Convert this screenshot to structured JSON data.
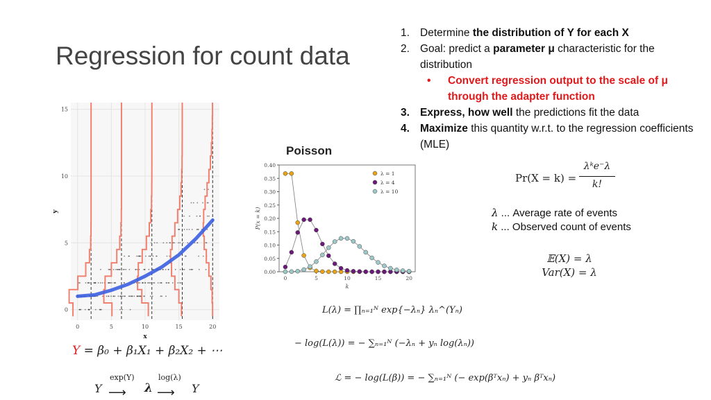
{
  "slide": {
    "title": "Regression for count data",
    "list": {
      "item1": {
        "num": "1.",
        "text": "Determine ",
        "bold": "the distribution of Y for each X"
      },
      "item2": {
        "num": "2.",
        "text": "Goal: predict a ",
        "bold": "parameter μ",
        "rest": " characteristic for the distribution"
      },
      "item2_sub": {
        "bullet": "•",
        "text": "Convert regression output to the scale of μ through the adapter function"
      },
      "item3": {
        "num": "3.",
        "bold": "Express, how well",
        "rest": " the predictions fit the data"
      },
      "item4": {
        "num": "4.",
        "bold": "Maximize",
        "rest": " this quantity w.r.t. to the regression coefficients (MLE)"
      }
    },
    "poisson_title": "Poisson",
    "pmf": {
      "lhs": "Pr(X = k) =",
      "numerator": "λᵏe⁻λ",
      "denominator": "k!"
    },
    "lambda_def": {
      "sym": "λ",
      "text": " ... Average rate of events"
    },
    "k_def": {
      "sym": "k",
      "text": " ... Observed count of events"
    },
    "moments": {
      "mean": "𝔼(X) = λ",
      "var": "Var(X) = λ"
    },
    "regression_eq": {
      "y": "Y",
      "rest": " = β₀ + β₁X₁ + β₂X₂ + ⋯"
    },
    "link": {
      "y1": "Y",
      "exp": "exp(Y)",
      "lam": "λ",
      "log": "log(λ)",
      "y2": "Y"
    },
    "likelihood": {
      "l1": "L(λ) = ∏ₙ₌₁ᴺ exp{−λₙ} λₙ^(Yₙ)",
      "l2": "− log(L(λ)) = − ∑ₙ₌₁ᴺ (−λₙ + yₙ log(λₙ))",
      "l3": "ℒ = − log(L(β)) = − ∑ₙ₌₁ᴺ (− exp(βᵀxₙ) + yₙ βᵀxₙ)"
    }
  },
  "chart_data": [
    {
      "type": "scatter",
      "title": "",
      "xlabel": "x",
      "ylabel": "y",
      "xlim": [
        -1,
        21
      ],
      "ylim": [
        -0.8,
        15.5
      ],
      "x_ticks": [
        "0",
        "5",
        "10",
        "15",
        "20"
      ],
      "y_ticks": [
        "0",
        "5",
        "10",
        "15"
      ],
      "vertical_lines_x": [
        2,
        6.5,
        11,
        15.5,
        20
      ],
      "curve": {
        "x": [
          0,
          2.5,
          5,
          7.5,
          10,
          12.5,
          15,
          17.5,
          20
        ],
        "y": [
          1.0,
          1.1,
          1.45,
          1.9,
          2.5,
          3.2,
          4.1,
          5.3,
          6.7
        ]
      },
      "color_curve": "#3b5fe0",
      "color_histogram": "#f08070",
      "color_points": "#333333"
    },
    {
      "type": "line",
      "title": "",
      "xlabel": "k",
      "ylabel": "P(x = k)",
      "xlim": [
        -1,
        21
      ],
      "ylim": [
        0,
        0.4
      ],
      "x_ticks": [
        "0",
        "5",
        "10",
        "15",
        "20"
      ],
      "y_ticks": [
        "0.00",
        "0.05",
        "0.10",
        "0.15",
        "0.20",
        "0.25",
        "0.30",
        "0.35",
        "0.40"
      ],
      "legend_position": "top-right",
      "series": [
        {
          "name": "λ = 1",
          "color": "#e8a317",
          "values": [
            0.368,
            0.368,
            0.184,
            0.061,
            0.015,
            0.003,
            0.0005,
            0.0001,
            0.0,
            0.0,
            0.0,
            0.0,
            0.0,
            0.0,
            0.0,
            0.0,
            0.0,
            0.0,
            0.0,
            0.0,
            0.0
          ]
        },
        {
          "name": "λ = 4",
          "color": "#6a1b7a",
          "values": [
            0.018,
            0.073,
            0.147,
            0.195,
            0.195,
            0.156,
            0.104,
            0.06,
            0.03,
            0.013,
            0.005,
            0.002,
            0.001,
            0.0,
            0.0,
            0.0,
            0.0,
            0.0,
            0.0,
            0.0,
            0.0
          ]
        },
        {
          "name": "λ = 10",
          "color": "#9ec8c8",
          "values": [
            0.0,
            0.0005,
            0.002,
            0.008,
            0.019,
            0.038,
            0.063,
            0.09,
            0.113,
            0.125,
            0.125,
            0.114,
            0.095,
            0.073,
            0.052,
            0.035,
            0.022,
            0.013,
            0.007,
            0.004,
            0.002
          ]
        }
      ]
    }
  ]
}
